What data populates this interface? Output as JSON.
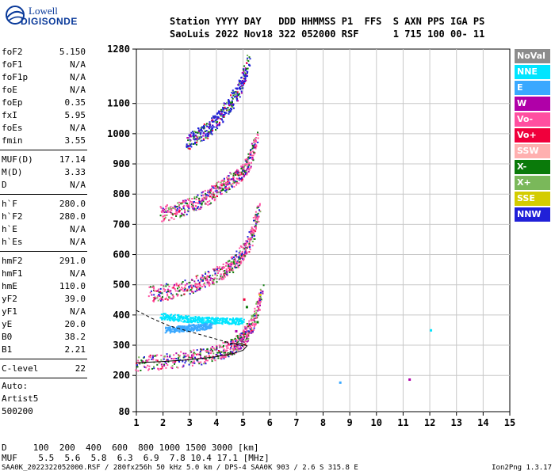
{
  "logo": {
    "line1": "Lowell",
    "line2": "DIGISONDE"
  },
  "header": {
    "line1": "Station YYYY DAY   DDD HHMMSS P1  FFS  S AXN PPS IGA PS",
    "line2": "SaoLuis 2022 Nov18 322 052000 RSF      1 715 100 00- 11"
  },
  "params_group1": [
    {
      "k": "foF2",
      "v": "5.150"
    },
    {
      "k": "foF1",
      "v": "N/A"
    },
    {
      "k": "foF1p",
      "v": "N/A"
    },
    {
      "k": "foE",
      "v": "N/A"
    },
    {
      "k": "foEp",
      "v": "0.35"
    },
    {
      "k": "fxI",
      "v": "5.95"
    },
    {
      "k": "foEs",
      "v": "N/A"
    },
    {
      "k": "fmin",
      "v": "3.55"
    }
  ],
  "params_group2": [
    {
      "k": "MUF(D)",
      "v": "17.14"
    },
    {
      "k": "M(D)",
      "v": "3.33"
    },
    {
      "k": "D",
      "v": "N/A"
    }
  ],
  "params_group3": [
    {
      "k": "h`F",
      "v": "280.0"
    },
    {
      "k": "h`F2",
      "v": "280.0"
    },
    {
      "k": "h`E",
      "v": "N/A"
    },
    {
      "k": "h`Es",
      "v": "N/A"
    }
  ],
  "params_group4": [
    {
      "k": "hmF2",
      "v": "291.0"
    },
    {
      "k": "hmF1",
      "v": "N/A"
    },
    {
      "k": "hmE",
      "v": "110.0"
    },
    {
      "k": "yF2",
      "v": "39.0"
    },
    {
      "k": "yF1",
      "v": "N/A"
    },
    {
      "k": "yE",
      "v": "20.0"
    },
    {
      "k": "B0",
      "v": "38.2"
    },
    {
      "k": "B1",
      "v": "2.21"
    }
  ],
  "params_group5": [
    {
      "k": "C-level",
      "v": "22"
    }
  ],
  "auto": {
    "label": "Auto:",
    "artist": "Artist5",
    "code": "500200"
  },
  "legend": [
    {
      "label": "NoVal",
      "color": "#8c8c8c"
    },
    {
      "label": "NNE",
      "color": "#00e5ff"
    },
    {
      "label": "E",
      "color": "#3aa8ff"
    },
    {
      "label": "W",
      "color": "#b000a8"
    },
    {
      "label": "Vo-",
      "color": "#ff4fa0"
    },
    {
      "label": "Vo+",
      "color": "#f0003c"
    },
    {
      "label": "SSW",
      "color": "#ffb0b0"
    },
    {
      "label": "X-",
      "color": "#0a7a0a"
    },
    {
      "label": "X+",
      "color": "#7ab85a"
    },
    {
      "label": "SSE",
      "color": "#d4cc00"
    },
    {
      "label": "NNW",
      "color": "#2020d8"
    }
  ],
  "footer": {
    "d_line": "D     100  200  400  600  800 1000 1500 3000 [km]",
    "muf_line": "MUF    5.5  5.6  5.8  6.3  6.9  7.8 10.4 17.1 [MHz]",
    "small": "SAA0K_2022322052000.RSF / 280fx256h 50 kHz 5.0 km / DPS-4 SAA0K 903 / 2.6 S 315.8 E",
    "version": "Ion2Png 1.3.17"
  },
  "chart_data": {
    "type": "scatter",
    "xlim": [
      1,
      15
    ],
    "ylim": [
      80,
      1280
    ],
    "x_ticks": [
      "1",
      "2",
      "3",
      "4",
      "5",
      "6",
      "7",
      "8",
      "9",
      "10",
      "11",
      "12",
      "13",
      "14",
      "15"
    ],
    "y_ticks": [
      {
        "v": 80,
        "label": "80"
      },
      {
        "v": 200,
        "label": "200"
      },
      {
        "v": 300,
        "label": "300"
      },
      {
        "v": 400,
        "label": "400"
      },
      {
        "v": 500,
        "label": "500"
      },
      {
        "v": 600,
        "label": "600"
      },
      {
        "v": 700,
        "label": "700"
      },
      {
        "v": 800,
        "label": "800"
      },
      {
        "v": 900,
        "label": "900"
      },
      {
        "v": 1000,
        "label": "1000"
      },
      {
        "v": 1100,
        "label": "1100"
      },
      {
        "v": 1280,
        "label": "1280"
      }
    ],
    "grid": true,
    "traces": [
      {
        "name": "F2 echo",
        "color": "#ff4fa0",
        "x": [
          1.0,
          2.0,
          3.0,
          3.6,
          4.2,
          4.6,
          4.9,
          5.1,
          5.4,
          5.7
        ],
        "y": [
          240,
          247,
          258,
          268,
          282,
          298,
          315,
          340,
          380,
          480
        ]
      },
      {
        "name": "F2 2-hop",
        "color": "#ff4fa0",
        "x": [
          1.5,
          2.2,
          3.0,
          3.6,
          4.2,
          4.6,
          5.0,
          5.3,
          5.6
        ],
        "y": [
          470,
          480,
          498,
          518,
          545,
          570,
          610,
          660,
          760
        ]
      },
      {
        "name": "F2 3-hop",
        "color": "#ff4fa0",
        "x": [
          1.9,
          2.5,
          3.1,
          3.6,
          4.1,
          4.5,
          4.9,
          5.2,
          5.5
        ],
        "y": [
          735,
          748,
          768,
          790,
          820,
          845,
          870,
          905,
          990
        ]
      },
      {
        "name": "F2 4-hop",
        "color": "#2020d8",
        "x": [
          2.9,
          3.3,
          3.7,
          4.1,
          4.5,
          4.9,
          5.2
        ],
        "y": [
          975,
          995,
          1020,
          1055,
          1100,
          1160,
          1240
        ]
      },
      {
        "name": "O model",
        "color": "#000000",
        "x": [
          1.0,
          2.0,
          3.0,
          4.0,
          4.6,
          5.0,
          5.15,
          4.9,
          4.5
        ],
        "y": [
          242,
          246,
          252,
          262,
          272,
          283,
          298,
          306,
          304
        ]
      },
      {
        "name": "X model",
        "color": "#000000",
        "x": [
          1.0,
          1.6,
          2.2,
          3.0,
          3.6,
          4.2,
          4.6,
          5.0
        ],
        "y": [
          415,
          388,
          365,
          345,
          330,
          315,
          305,
          298
        ],
        "dashed": true
      },
      {
        "name": "Es/oblique",
        "color": "#00e5ff",
        "x": [
          1.9,
          2.5,
          3.0,
          3.5,
          4.0,
          4.5,
          5.0
        ],
        "y": [
          398,
          392,
          388,
          385,
          383,
          382,
          380
        ]
      },
      {
        "name": "Es low",
        "color": "#3aa8ff",
        "x": [
          2.1,
          2.6,
          3.0,
          3.4,
          3.8
        ],
        "y": [
          352,
          356,
          360,
          362,
          366
        ]
      }
    ],
    "ionogram_blobs": [
      {
        "x": 5.1,
        "y": 430,
        "color": "#0a7a0a"
      },
      {
        "x": 5.3,
        "y": 400,
        "color": "#7ab85a"
      },
      {
        "x": 5.5,
        "y": 380,
        "color": "#0a7a0a"
      },
      {
        "x": 5.0,
        "y": 455,
        "color": "#f0003c"
      },
      {
        "x": 4.7,
        "y": 350,
        "color": "#b000a8"
      },
      {
        "x": 5.6,
        "y": 470,
        "color": "#d4cc00"
      },
      {
        "x": 8.6,
        "y": 180,
        "color": "#3aa8ff"
      },
      {
        "x": 11.2,
        "y": 190,
        "color": "#b000a8"
      },
      {
        "x": 12.0,
        "y": 353,
        "color": "#00e5ff"
      }
    ]
  }
}
